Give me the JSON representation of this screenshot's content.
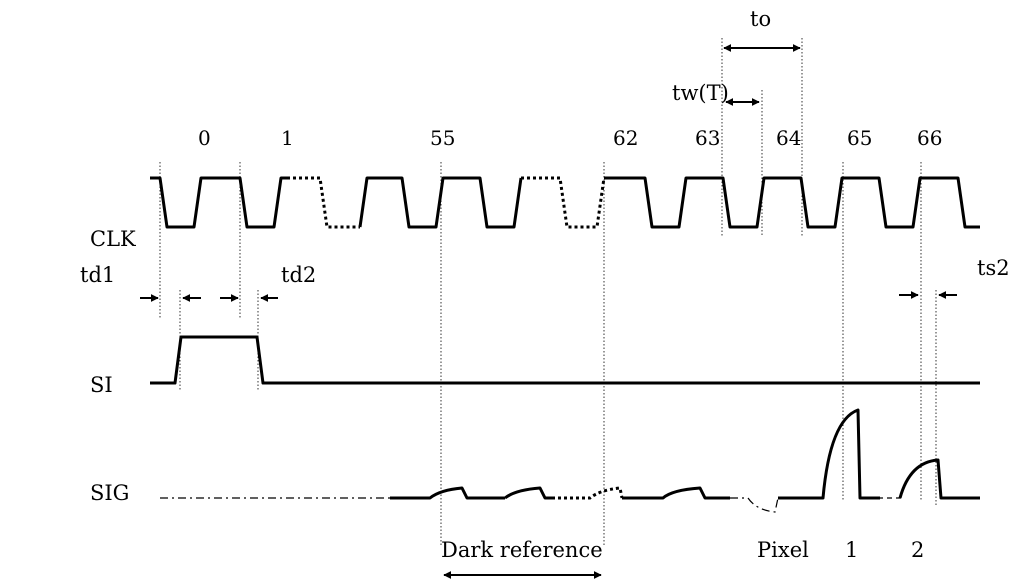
{
  "signals": {
    "clk": "CLK",
    "si": "SI",
    "sig": "SIG"
  },
  "clock_numbers": {
    "n0": "0",
    "n1": "1",
    "n55": "55",
    "n62": "62",
    "n63": "63",
    "n64": "64",
    "n65": "65",
    "n66": "66"
  },
  "timing": {
    "to": "to",
    "tw": "tw(T)",
    "td1": "td1",
    "td2": "td2",
    "ts2": "ts2"
  },
  "annotations": {
    "dark_reference": "Dark reference",
    "pixel": "Pixel",
    "pixel_1": "1",
    "pixel_2": "2"
  }
}
